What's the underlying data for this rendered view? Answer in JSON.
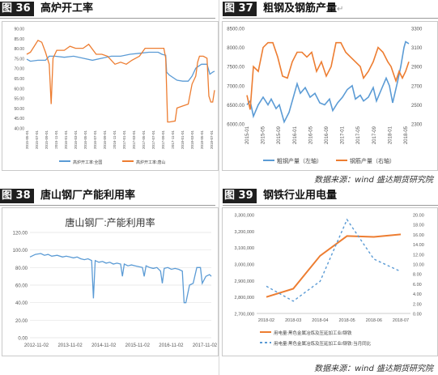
{
  "header_tl": {
    "label": "图 36",
    "title": "高炉开工率"
  },
  "header_tr": {
    "label": "图 37",
    "title": "粗钢及钢筋产量",
    "mark": "↵"
  },
  "header_bl": {
    "label": "图 38",
    "title": "唐山钢厂产能利用率"
  },
  "header_br": {
    "label": "图 39",
    "title": "钢铁行业用电量"
  },
  "source_top": "数据来源：wind 盛达期货研究院",
  "source_bottom": "数据来源：wind 盛达期货研究院",
  "chart_data": [
    {
      "id": "blast-furnace",
      "type": "line",
      "title": "",
      "ylim": [
        40,
        90
      ],
      "yticks": [
        "40.00",
        "45.00",
        "50.00",
        "55.00",
        "60.00",
        "65.00",
        "70.00",
        "75.00",
        "80.00",
        "85.00",
        "90.00"
      ],
      "xlim": [
        0,
        1
      ],
      "xticks": [
        "2015-05-01",
        "2015-07-01",
        "2015-09-01",
        "2015-11-01",
        "2016-01-01",
        "2016-03-01",
        "2016-05-01",
        "2016-07-01",
        "2016-09-01",
        "2016-11-01",
        "2017-01-01",
        "2017-03-01",
        "2017-05-01",
        "2017-07-01",
        "2017-09-01",
        "2017-11-01",
        "2018-01-01",
        "2018-03-01",
        "2018-05-01",
        "2018-07-01"
      ],
      "series": [
        {
          "name": "高炉开工率:全国",
          "color": "#5b9bd5",
          "points": [
            [
              0,
              74.5
            ],
            [
              0.02,
              73.5
            ],
            [
              0.06,
              74
            ],
            [
              0.1,
              74
            ],
            [
              0.12,
              76
            ],
            [
              0.15,
              76
            ],
            [
              0.2,
              75.5
            ],
            [
              0.25,
              76
            ],
            [
              0.3,
              75
            ],
            [
              0.35,
              74
            ],
            [
              0.4,
              75
            ],
            [
              0.45,
              76
            ],
            [
              0.5,
              76
            ],
            [
              0.55,
              77
            ],
            [
              0.6,
              77.5
            ],
            [
              0.65,
              78
            ],
            [
              0.7,
              78
            ],
            [
              0.72,
              77
            ],
            [
              0.74,
              76.5
            ],
            [
              0.745,
              68
            ],
            [
              0.76,
              66.5
            ],
            [
              0.8,
              64
            ],
            [
              0.83,
              63.5
            ],
            [
              0.86,
              63.5
            ],
            [
              0.88,
              66
            ],
            [
              0.9,
              70
            ],
            [
              0.93,
              72
            ],
            [
              0.96,
              72
            ],
            [
              0.975,
              67
            ],
            [
              0.99,
              68
            ],
            [
              1,
              68.5
            ]
          ]
        },
        {
          "name": "高炉开工率:唐山",
          "color": "#ed7d31",
          "points": [
            [
              0,
              77
            ],
            [
              0.02,
              78
            ],
            [
              0.04,
              81
            ],
            [
              0.06,
              84
            ],
            [
              0.08,
              83
            ],
            [
              0.1,
              78
            ],
            [
              0.12,
              72
            ],
            [
              0.13,
              52
            ],
            [
              0.14,
              75
            ],
            [
              0.16,
              79
            ],
            [
              0.2,
              79
            ],
            [
              0.23,
              81
            ],
            [
              0.26,
              80
            ],
            [
              0.3,
              80
            ],
            [
              0.33,
              82
            ],
            [
              0.37,
              77
            ],
            [
              0.4,
              77
            ],
            [
              0.43,
              76
            ],
            [
              0.47,
              72
            ],
            [
              0.5,
              73
            ],
            [
              0.53,
              72
            ],
            [
              0.56,
              74
            ],
            [
              0.6,
              76
            ],
            [
              0.63,
              80
            ],
            [
              0.66,
              80
            ],
            [
              0.7,
              80
            ],
            [
              0.73,
              80
            ],
            [
              0.74,
              75
            ],
            [
              0.75,
              43
            ],
            [
              0.76,
              43
            ],
            [
              0.79,
              43.5
            ],
            [
              0.8,
              50
            ],
            [
              0.83,
              51
            ],
            [
              0.86,
              52
            ],
            [
              0.88,
              62
            ],
            [
              0.9,
              66
            ],
            [
              0.91,
              73
            ],
            [
              0.92,
              76
            ],
            [
              0.94,
              76
            ],
            [
              0.96,
              75
            ],
            [
              0.97,
              56
            ],
            [
              0.98,
              53
            ],
            [
              0.99,
              53
            ],
            [
              1,
              59
            ]
          ]
        }
      ]
    },
    {
      "id": "steel-output",
      "type": "line",
      "title": "",
      "ylim": [
        6000,
        8500
      ],
      "yticks": [
        "6000.00",
        "6500.00",
        "7000.00",
        "7500.00",
        "8000.00",
        "8500.00"
      ],
      "y2lim": [
        2300,
        3300
      ],
      "y2ticks": [
        "2300",
        "2500",
        "2700",
        "2900",
        "3100",
        "3300"
      ],
      "xticks": [
        "2015-01",
        "2015-05",
        "2015-09",
        "2016-01",
        "2016-05",
        "2016-09",
        "2017-01",
        "2017-05",
        "2017-09",
        "2018-01",
        "2018-05"
      ],
      "series": [
        {
          "name": "粗钢产量（左轴）",
          "axis": "left",
          "color": "#5b9bd5",
          "points": [
            [
              0,
              6500
            ],
            [
              0.02,
              6600
            ],
            [
              0.04,
              6200
            ],
            [
              0.07,
              6500
            ],
            [
              0.1,
              6700
            ],
            [
              0.13,
              6500
            ],
            [
              0.15,
              6650
            ],
            [
              0.18,
              6400
            ],
            [
              0.2,
              6500
            ],
            [
              0.23,
              6050
            ],
            [
              0.26,
              6300
            ],
            [
              0.28,
              6600
            ],
            [
              0.31,
              7050
            ],
            [
              0.33,
              6800
            ],
            [
              0.36,
              6950
            ],
            [
              0.39,
              6700
            ],
            [
              0.42,
              6800
            ],
            [
              0.45,
              6550
            ],
            [
              0.48,
              6500
            ],
            [
              0.51,
              6650
            ],
            [
              0.53,
              6350
            ],
            [
              0.56,
              6550
            ],
            [
              0.59,
              6700
            ],
            [
              0.62,
              6900
            ],
            [
              0.65,
              7000
            ],
            [
              0.67,
              6650
            ],
            [
              0.7,
              6750
            ],
            [
              0.72,
              6600
            ],
            [
              0.75,
              6700
            ],
            [
              0.78,
              6950
            ],
            [
              0.8,
              6600
            ],
            [
              0.83,
              6900
            ],
            [
              0.86,
              7200
            ],
            [
              0.88,
              7000
            ],
            [
              0.9,
              6550
            ],
            [
              0.93,
              7100
            ],
            [
              0.95,
              7500
            ],
            [
              0.97,
              8000
            ],
            [
              0.98,
              8150
            ],
            [
              1,
              8100
            ]
          ]
        },
        {
          "name": "钢筋产量（右轴）",
          "axis": "right",
          "color": "#ed7d31",
          "points": [
            [
              0,
              2600
            ],
            [
              0.02,
              2450
            ],
            [
              0.04,
              2900
            ],
            [
              0.07,
              2850
            ],
            [
              0.1,
              3100
            ],
            [
              0.13,
              3150
            ],
            [
              0.16,
              3150
            ],
            [
              0.19,
              3000
            ],
            [
              0.22,
              2800
            ],
            [
              0.25,
              2780
            ],
            [
              0.28,
              2950
            ],
            [
              0.31,
              3050
            ],
            [
              0.34,
              3050
            ],
            [
              0.37,
              3000
            ],
            [
              0.4,
              3050
            ],
            [
              0.43,
              2850
            ],
            [
              0.46,
              2950
            ],
            [
              0.49,
              2800
            ],
            [
              0.52,
              2900
            ],
            [
              0.55,
              3150
            ],
            [
              0.58,
              3150
            ],
            [
              0.61,
              3050
            ],
            [
              0.64,
              3000
            ],
            [
              0.67,
              2950
            ],
            [
              0.7,
              2900
            ],
            [
              0.72,
              2780
            ],
            [
              0.75,
              2850
            ],
            [
              0.78,
              2950
            ],
            [
              0.81,
              3100
            ],
            [
              0.84,
              3050
            ],
            [
              0.87,
              2950
            ],
            [
              0.89,
              2900
            ],
            [
              0.92,
              2750
            ],
            [
              0.94,
              2850
            ],
            [
              0.96,
              2780
            ],
            [
              0.98,
              2850
            ],
            [
              1,
              2950
            ]
          ]
        }
      ]
    },
    {
      "id": "tangshan-utilization",
      "type": "line",
      "title": "唐山钢厂:产能利用率",
      "ylim": [
        0,
        120
      ],
      "yticks": [
        "0.00",
        "20.00",
        "40.00",
        "60.00",
        "80.00",
        "100.00",
        "120.00"
      ],
      "xticks": [
        "2012-11-02",
        "2013-11-02",
        "2014-11-02",
        "2015-11-02",
        "2016-11-02",
        "2017-11-02"
      ],
      "series": [
        {
          "name": "唐山钢厂:产能利用率",
          "color": "#5b9bd5",
          "points": [
            [
              0,
              92
            ],
            [
              0.03,
              95
            ],
            [
              0.06,
              96
            ],
            [
              0.08,
              94
            ],
            [
              0.1,
              95
            ],
            [
              0.12,
              93
            ],
            [
              0.15,
              94
            ],
            [
              0.18,
              92
            ],
            [
              0.2,
              93
            ],
            [
              0.22,
              92
            ],
            [
              0.24,
              91
            ],
            [
              0.26,
              92
            ],
            [
              0.28,
              90
            ],
            [
              0.3,
              89
            ],
            [
              0.32,
              90
            ],
            [
              0.34,
              88
            ],
            [
              0.35,
              45
            ],
            [
              0.36,
              88
            ],
            [
              0.38,
              86
            ],
            [
              0.4,
              87
            ],
            [
              0.42,
              85
            ],
            [
              0.44,
              86
            ],
            [
              0.46,
              84
            ],
            [
              0.48,
              85
            ],
            [
              0.5,
              84
            ],
            [
              0.51,
              70
            ],
            [
              0.52,
              84
            ],
            [
              0.54,
              82
            ],
            [
              0.56,
              83
            ],
            [
              0.58,
              82
            ],
            [
              0.6,
              81
            ],
            [
              0.62,
              80
            ],
            [
              0.63,
              70
            ],
            [
              0.64,
              82
            ],
            [
              0.66,
              80
            ],
            [
              0.68,
              79
            ],
            [
              0.7,
              80
            ],
            [
              0.72,
              76
            ],
            [
              0.73,
              62
            ],
            [
              0.74,
              79
            ],
            [
              0.76,
              80
            ],
            [
              0.78,
              78
            ],
            [
              0.8,
              79
            ],
            [
              0.82,
              78
            ],
            [
              0.84,
              76
            ],
            [
              0.85,
              40
            ],
            [
              0.86,
              40
            ],
            [
              0.88,
              60
            ],
            [
              0.9,
              62
            ],
            [
              0.92,
              80
            ],
            [
              0.94,
              80
            ],
            [
              0.95,
              62
            ],
            [
              0.97,
              70
            ],
            [
              0.99,
              72
            ],
            [
              1,
              70
            ]
          ]
        }
      ]
    },
    {
      "id": "electricity-use",
      "type": "line",
      "title": "",
      "ylim": [
        2700000,
        3300000
      ],
      "yticks": [
        "2,700,000",
        "2,800,000",
        "2,900,000",
        "3,000,000",
        "3,100,000",
        "3,200,000",
        "3,300,000"
      ],
      "y2lim": [
        0,
        20
      ],
      "y2ticks": [
        "0.00",
        "2.00",
        "4.00",
        "6.00",
        "8.00",
        "10.00",
        "12.00",
        "14.00",
        "16.00",
        "18.00",
        "20.00"
      ],
      "categories": [
        "2018-02",
        "2018-03",
        "2018-04",
        "2018-05",
        "2018-06",
        "2018-07"
      ],
      "series": [
        {
          "name": "用电量:黑色金属冶炼及压延加工业/钢铁",
          "axis": "left",
          "color": "#ed7d31",
          "dash": "",
          "values": [
            2800000,
            2850000,
            3050000,
            3170000,
            3165000,
            3180000
          ]
        },
        {
          "name": "用电量:黑色金属冶炼及压延加工业/钢铁:当月同比",
          "axis": "right",
          "color": "#5b9bd5",
          "dash": "3,3",
          "values": [
            5.5,
            2.5,
            6.5,
            19,
            11,
            8.5
          ]
        }
      ]
    }
  ]
}
